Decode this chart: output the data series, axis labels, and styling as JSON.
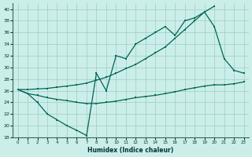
{
  "xlabel": "Humidex (Indice chaleur)",
  "bg_color": "#cceee8",
  "grid_color": "#99cccc",
  "line_color": "#006655",
  "xlim": [
    -0.5,
    23.5
  ],
  "ylim": [
    18,
    41
  ],
  "xticks": [
    0,
    1,
    2,
    3,
    4,
    5,
    6,
    7,
    8,
    9,
    10,
    11,
    12,
    13,
    14,
    15,
    16,
    17,
    18,
    19,
    20,
    21,
    22,
    23
  ],
  "yticks": [
    18,
    20,
    22,
    24,
    26,
    28,
    30,
    32,
    34,
    36,
    38,
    40
  ],
  "line1_x": [
    0,
    1,
    2,
    3,
    4,
    5,
    6,
    7,
    8,
    9,
    10,
    11,
    12,
    13,
    14,
    15,
    16,
    17,
    18,
    19,
    20,
    21,
    22,
    23
  ],
  "line1_y": [
    26.2,
    25.5,
    25.2,
    24.8,
    24.5,
    24.3,
    24.0,
    23.8,
    23.8,
    24.0,
    24.2,
    24.5,
    24.8,
    25.0,
    25.2,
    25.5,
    25.8,
    26.2,
    26.5,
    26.8,
    27.0,
    27.0,
    27.2,
    27.5
  ],
  "line2_x": [
    0,
    1,
    2,
    3,
    4,
    5,
    6,
    7,
    8,
    9,
    10,
    11,
    12,
    13,
    14,
    15,
    16,
    17,
    18,
    19,
    20,
    21,
    22,
    23
  ],
  "line2_y": [
    26.2,
    25.5,
    24.0,
    22.0,
    21.0,
    20.0,
    19.2,
    18.3,
    29.0,
    26.0,
    32.0,
    31.5,
    34.0,
    35.0,
    36.0,
    37.0,
    35.5,
    38.0,
    38.5,
    39.5,
    37.0,
    31.5,
    29.5,
    29.0
  ],
  "line3_x": [
    0,
    1,
    2,
    3,
    4,
    5,
    6,
    7,
    8,
    9,
    10,
    11,
    12,
    13,
    14,
    15,
    16,
    17,
    18,
    19,
    20
  ],
  "line3_y": [
    26.2,
    26.2,
    26.3,
    26.4,
    26.6,
    26.8,
    27.0,
    27.3,
    27.8,
    28.3,
    29.0,
    29.8,
    30.5,
    31.5,
    32.5,
    33.5,
    35.0,
    36.5,
    38.0,
    39.5,
    40.5
  ]
}
